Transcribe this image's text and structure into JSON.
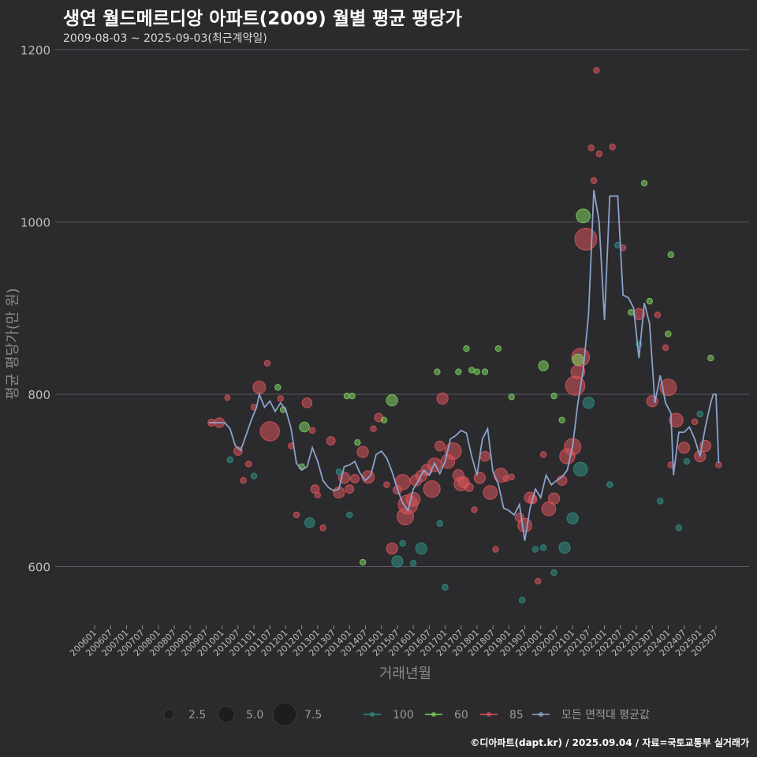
{
  "header": {
    "title": "생연 월드메르디앙 아파트(2009) 월별 평균 평당가",
    "subtitle": "2009-08-03 ~ 2025-09-03(최근계약일)"
  },
  "footer": {
    "credit": "©디아파트(dapt.kr) / 2025.09.04 / 자료=국토교통부 실거래가"
  },
  "colors": {
    "background": "#2b2b2e",
    "grid": "#5a5a5e",
    "s100": "#2f8f84",
    "s60": "#7fcf5f",
    "s85": "#d9535b",
    "avg": "#8fa9d4"
  },
  "chart_data": {
    "type": "scatter+line",
    "title": "생연 월드메르디앙 아파트(2009) 월별 평균 평당가",
    "xlabel": "거래년월",
    "ylabel": "평균 평당가(만 원)",
    "ylim": [
      530,
      1210
    ],
    "y_ticks": [
      600,
      800,
      1000,
      1200
    ],
    "x_range": [
      "2006-01",
      "2025-09"
    ],
    "x_tick_labels": [
      "200601",
      "200607",
      "200701",
      "200707",
      "200801",
      "200807",
      "200901",
      "200907",
      "201001",
      "201007",
      "201101",
      "201107",
      "201201",
      "201207",
      "201301",
      "201307",
      "201401",
      "201407",
      "201501",
      "201507",
      "201601",
      "201607",
      "201701",
      "201707",
      "201801",
      "201807",
      "201901",
      "201907",
      "202001",
      "202007",
      "202101",
      "202107",
      "202201",
      "202207",
      "202301",
      "202307",
      "202401",
      "202407",
      "202501",
      "202507"
    ],
    "size_legend": {
      "title": "",
      "labels": [
        "2.5",
        "5.0",
        "7.5"
      ],
      "values": [
        2.5,
        5.0,
        7.5
      ]
    },
    "color_legend": [
      "100",
      "60",
      "85",
      "모든 면적대 평균값"
    ],
    "series": [
      {
        "name": "모든 면적대 평균값",
        "kind": "line",
        "points": [
          [
            "2009-08",
            767
          ],
          [
            "2009-11",
            767
          ],
          [
            "2010-02",
            767
          ],
          [
            "2010-04",
            760
          ],
          [
            "2010-06",
            740
          ],
          [
            "2010-08",
            735
          ],
          [
            "2010-10",
            752
          ],
          [
            "2010-12",
            770
          ],
          [
            "2011-02",
            785
          ],
          [
            "2011-03",
            800
          ],
          [
            "2011-05",
            785
          ],
          [
            "2011-07",
            792
          ],
          [
            "2011-09",
            780
          ],
          [
            "2011-11",
            790
          ],
          [
            "2012-01",
            782
          ],
          [
            "2012-03",
            760
          ],
          [
            "2012-05",
            720
          ],
          [
            "2012-07",
            712
          ],
          [
            "2012-09",
            716
          ],
          [
            "2012-11",
            738
          ],
          [
            "2013-01",
            722
          ],
          [
            "2013-03",
            700
          ],
          [
            "2013-05",
            692
          ],
          [
            "2013-07",
            688
          ],
          [
            "2013-09",
            690
          ],
          [
            "2013-11",
            716
          ],
          [
            "2014-01",
            718
          ],
          [
            "2014-03",
            722
          ],
          [
            "2014-05",
            708
          ],
          [
            "2014-07",
            700
          ],
          [
            "2014-09",
            706
          ],
          [
            "2014-11",
            730
          ],
          [
            "2015-01",
            734
          ],
          [
            "2015-03",
            726
          ],
          [
            "2015-05",
            710
          ],
          [
            "2015-07",
            690
          ],
          [
            "2015-09",
            674
          ],
          [
            "2015-11",
            665
          ],
          [
            "2016-01",
            690
          ],
          [
            "2016-03",
            700
          ],
          [
            "2016-05",
            712
          ],
          [
            "2016-07",
            706
          ],
          [
            "2016-09",
            720
          ],
          [
            "2016-11",
            708
          ],
          [
            "2017-01",
            722
          ],
          [
            "2017-03",
            748
          ],
          [
            "2017-05",
            752
          ],
          [
            "2017-07",
            758
          ],
          [
            "2017-09",
            755
          ],
          [
            "2017-11",
            728
          ],
          [
            "2018-01",
            706
          ],
          [
            "2018-03",
            748
          ],
          [
            "2018-05",
            760
          ],
          [
            "2018-07",
            710
          ],
          [
            "2018-09",
            696
          ],
          [
            "2018-11",
            668
          ],
          [
            "2019-01",
            665
          ],
          [
            "2019-03",
            660
          ],
          [
            "2019-05",
            672
          ],
          [
            "2019-07",
            630
          ],
          [
            "2019-09",
            668
          ],
          [
            "2019-11",
            690
          ],
          [
            "2020-01",
            680
          ],
          [
            "2020-03",
            706
          ],
          [
            "2020-05",
            695
          ],
          [
            "2020-07",
            700
          ],
          [
            "2020-09",
            704
          ],
          [
            "2020-11",
            712
          ],
          [
            "2021-01",
            740
          ],
          [
            "2021-03",
            790
          ],
          [
            "2021-05",
            828
          ],
          [
            "2021-07",
            893
          ],
          [
            "2021-09",
            1037
          ],
          [
            "2021-11",
            1000
          ],
          [
            "2022-01",
            886
          ],
          [
            "2022-03",
            1030
          ],
          [
            "2022-06",
            1030
          ],
          [
            "2022-08",
            915
          ],
          [
            "2022-10",
            912
          ],
          [
            "2022-12",
            900
          ],
          [
            "2023-02",
            842
          ],
          [
            "2023-04",
            906
          ],
          [
            "2023-06",
            882
          ],
          [
            "2023-08",
            790
          ],
          [
            "2023-10",
            822
          ],
          [
            "2023-12",
            790
          ],
          [
            "2024-02",
            778
          ],
          [
            "2024-03",
            706
          ],
          [
            "2024-05",
            756
          ],
          [
            "2024-07",
            756
          ],
          [
            "2024-09",
            762
          ],
          [
            "2024-11",
            748
          ],
          [
            "2025-01",
            728
          ],
          [
            "2025-03",
            762
          ],
          [
            "2025-05",
            790
          ],
          [
            "2025-06",
            800
          ],
          [
            "2025-07",
            800
          ],
          [
            "2025-08",
            720
          ]
        ]
      },
      {
        "name": "85",
        "kind": "scatter",
        "points": [
          [
            "2009-09",
            767,
            1.5
          ],
          [
            "2009-12",
            767,
            2.5
          ],
          [
            "2010-03",
            796,
            0.8
          ],
          [
            "2010-07",
            734,
            2.0
          ],
          [
            "2010-09",
            700,
            1.0
          ],
          [
            "2010-11",
            719,
            1.0
          ],
          [
            "2011-01",
            785,
            1.0
          ],
          [
            "2011-03",
            808,
            3.5
          ],
          [
            "2011-06",
            836,
            1.0
          ],
          [
            "2011-07",
            757,
            6.0
          ],
          [
            "2011-11",
            795,
            1.0
          ],
          [
            "2012-03",
            740,
            1.0
          ],
          [
            "2012-05",
            660,
            1.0
          ],
          [
            "2012-09",
            790,
            2.5
          ],
          [
            "2012-11",
            758,
            1.0
          ],
          [
            "2012-12",
            690,
            2.0
          ],
          [
            "2013-01",
            683,
            1.0
          ],
          [
            "2013-03",
            645,
            1.0
          ],
          [
            "2013-06",
            746,
            2.0
          ],
          [
            "2013-09",
            686,
            3.0
          ],
          [
            "2013-11",
            703,
            3.0
          ],
          [
            "2014-01",
            690,
            2.0
          ],
          [
            "2014-03",
            702,
            2.0
          ],
          [
            "2014-06",
            733,
            3.0
          ],
          [
            "2014-08",
            704,
            3.5
          ],
          [
            "2014-10",
            760,
            1.0
          ],
          [
            "2014-12",
            773,
            2.0
          ],
          [
            "2015-03",
            695,
            1.0
          ],
          [
            "2015-05",
            621,
            3.0
          ],
          [
            "2015-07",
            689,
            2.0
          ],
          [
            "2015-09",
            698,
            4.5
          ],
          [
            "2015-10",
            658,
            5.0
          ],
          [
            "2015-11",
            672,
            6.0
          ],
          [
            "2016-01",
            678,
            4.0
          ],
          [
            "2016-02",
            700,
            3.0
          ],
          [
            "2016-04",
            705,
            3.0
          ],
          [
            "2016-06",
            712,
            3.0
          ],
          [
            "2016-08",
            690,
            5.0
          ],
          [
            "2016-09",
            718,
            4.0
          ],
          [
            "2016-11",
            740,
            2.5
          ],
          [
            "2016-12",
            795,
            3.0
          ],
          [
            "2017-02",
            722,
            4.0
          ],
          [
            "2017-04",
            734,
            5.0
          ],
          [
            "2017-06",
            706,
            3.0
          ],
          [
            "2017-07",
            696,
            4.0
          ],
          [
            "2017-08",
            698,
            3.0
          ],
          [
            "2017-10",
            692,
            2.0
          ],
          [
            "2017-12",
            666,
            1.0
          ],
          [
            "2018-02",
            703,
            3.0
          ],
          [
            "2018-04",
            728,
            2.5
          ],
          [
            "2018-06",
            686,
            4.0
          ],
          [
            "2018-08",
            620,
            1.0
          ],
          [
            "2018-10",
            706,
            4.0
          ],
          [
            "2018-12",
            702,
            1.0
          ],
          [
            "2019-02",
            704,
            1.0
          ],
          [
            "2019-05",
            657,
            2.0
          ],
          [
            "2019-07",
            648,
            4.0
          ],
          [
            "2019-09",
            680,
            3.0
          ],
          [
            "2019-10",
            678,
            2.0
          ],
          [
            "2019-12",
            583,
            1.0
          ],
          [
            "2020-02",
            730,
            1.0
          ],
          [
            "2020-04",
            667,
            4.0
          ],
          [
            "2020-06",
            679,
            3.0
          ],
          [
            "2020-09",
            700,
            2.5
          ],
          [
            "2020-11",
            728,
            4.5
          ],
          [
            "2021-01",
            739,
            5.0
          ],
          [
            "2021-02",
            810,
            6.0
          ],
          [
            "2021-03",
            826,
            4.0
          ],
          [
            "2021-04",
            843,
            5.5
          ],
          [
            "2021-06",
            980,
            7.0
          ],
          [
            "2021-08",
            1086,
            1.0
          ],
          [
            "2021-09",
            1048,
            1.0
          ],
          [
            "2021-10",
            1176,
            1.0
          ],
          [
            "2021-11",
            1079,
            1.0
          ],
          [
            "2022-04",
            1087,
            1.0
          ],
          [
            "2022-08",
            970,
            1.0
          ],
          [
            "2023-02",
            893,
            3.0
          ],
          [
            "2023-07",
            792,
            3.0
          ],
          [
            "2023-09",
            892,
            1.0
          ],
          [
            "2023-12",
            854,
            1.0
          ],
          [
            "2024-01",
            808,
            5.0
          ],
          [
            "2024-02",
            718,
            1.0
          ],
          [
            "2024-04",
            770,
            4.0
          ],
          [
            "2024-07",
            738,
            3.0
          ],
          [
            "2024-11",
            768,
            1.0
          ],
          [
            "2025-01",
            728,
            3.0
          ],
          [
            "2025-03",
            740,
            3.0
          ],
          [
            "2025-08",
            718,
            1.0
          ]
        ]
      },
      {
        "name": "60",
        "kind": "scatter",
        "points": [
          [
            "2011-10",
            808,
            1.0
          ],
          [
            "2011-12",
            782,
            1.0
          ],
          [
            "2012-07",
            716,
            1.0
          ],
          [
            "2012-08",
            762,
            2.5
          ],
          [
            "2013-12",
            798,
            1.0
          ],
          [
            "2014-02",
            798,
            1.0
          ],
          [
            "2014-04",
            744,
            1.0
          ],
          [
            "2014-06",
            605,
            1.0
          ],
          [
            "2015-02",
            770,
            1.0
          ],
          [
            "2015-05",
            793,
            3.0
          ],
          [
            "2016-10",
            826,
            1.0
          ],
          [
            "2017-06",
            826,
            1.0
          ],
          [
            "2017-09",
            853,
            1.0
          ],
          [
            "2017-11",
            828,
            1.0
          ],
          [
            "2018-01",
            826,
            1.0
          ],
          [
            "2018-04",
            826,
            1.0
          ],
          [
            "2018-09",
            853,
            1.0
          ],
          [
            "2019-02",
            797,
            1.0
          ],
          [
            "2020-02",
            833,
            2.5
          ],
          [
            "2020-06",
            798,
            1.0
          ],
          [
            "2020-09",
            770,
            1.0
          ],
          [
            "2021-03",
            840,
            3.0
          ],
          [
            "2021-05",
            1007,
            4.0
          ],
          [
            "2022-11",
            895,
            1.0
          ],
          [
            "2023-04",
            1045,
            1.0
          ],
          [
            "2023-06",
            908,
            1.0
          ],
          [
            "2024-01",
            870,
            1.0
          ],
          [
            "2024-02",
            962,
            1.0
          ],
          [
            "2025-05",
            842,
            1.0
          ]
        ]
      },
      {
        "name": "100",
        "kind": "scatter",
        "points": [
          [
            "2010-04",
            724,
            1.0
          ],
          [
            "2011-01",
            705,
            1.0
          ],
          [
            "2012-10",
            651,
            2.5
          ],
          [
            "2013-09",
            710,
            1.0
          ],
          [
            "2014-01",
            660,
            1.0
          ],
          [
            "2015-07",
            606,
            3.0
          ],
          [
            "2015-09",
            627,
            1.0
          ],
          [
            "2016-01",
            604,
            1.0
          ],
          [
            "2016-04",
            621,
            3.0
          ],
          [
            "2016-11",
            650,
            1.0
          ],
          [
            "2017-01",
            576,
            1.0
          ],
          [
            "2019-06",
            561,
            1.0
          ],
          [
            "2019-11",
            620,
            1.0
          ],
          [
            "2020-02",
            622,
            1.0
          ],
          [
            "2020-06",
            593,
            1.0
          ],
          [
            "2020-10",
            622,
            3.0
          ],
          [
            "2021-01",
            656,
            3.0
          ],
          [
            "2021-04",
            713,
            4.0
          ],
          [
            "2021-07",
            790,
            3.0
          ],
          [
            "2022-03",
            695,
            1.0
          ],
          [
            "2022-06",
            973,
            1.0
          ],
          [
            "2023-02",
            858,
            1.0
          ],
          [
            "2023-10",
            676,
            1.0
          ],
          [
            "2024-05",
            645,
            1.0
          ],
          [
            "2024-08",
            722,
            1.0
          ],
          [
            "2025-01",
            777,
            1.0
          ]
        ]
      }
    ]
  }
}
